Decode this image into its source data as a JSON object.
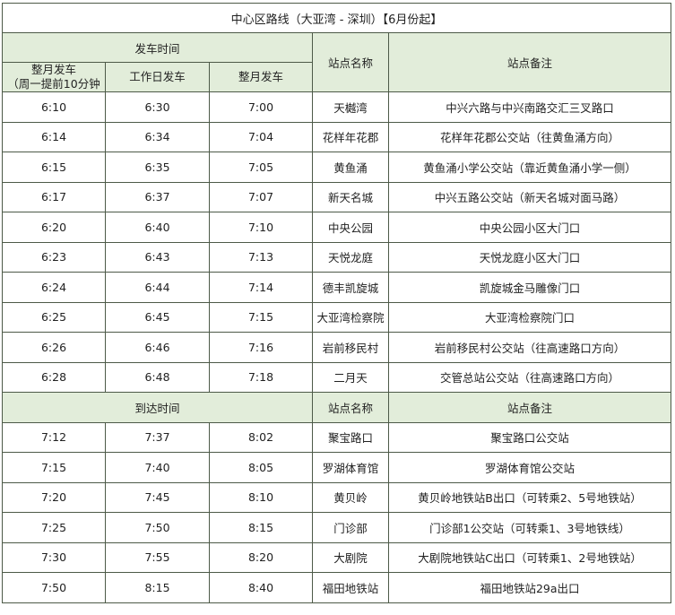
{
  "title": "中心区路线（大亚湾 - 深圳）【6月份起】",
  "departure_header": {
    "group_label": "发车时间",
    "col1": "整月发车",
    "col1_note": "（周一提前10分钟",
    "col2": "工作日发车",
    "col3": "整月发车",
    "station": "站点名称",
    "remark": "站点备注"
  },
  "departure_rows": [
    {
      "t1": "6:10",
      "t2": "6:30",
      "t3": "7:00",
      "station": "天樾湾",
      "remark": "中兴六路与中兴南路交汇三叉路口"
    },
    {
      "t1": "6:14",
      "t2": "6:34",
      "t3": "7:04",
      "station": "花样年花郡",
      "remark": "花样年花郡公交站（往黄鱼涌方向）"
    },
    {
      "t1": "6:15",
      "t2": "6:35",
      "t3": "7:05",
      "station": "黄鱼涌",
      "remark": "黄鱼涌小学公交站（靠近黄鱼涌小学一侧）"
    },
    {
      "t1": "6:17",
      "t2": "6:37",
      "t3": "7:07",
      "station": "新天名城",
      "remark": "中兴五路公交站（新天名城对面马路）"
    },
    {
      "t1": "6:20",
      "t2": "6:40",
      "t3": "7:10",
      "station": "中央公园",
      "remark": "中央公园小区大门口"
    },
    {
      "t1": "6:23",
      "t2": "6:43",
      "t3": "7:13",
      "station": "天悦龙庭",
      "remark": "天悦龙庭小区大门口"
    },
    {
      "t1": "6:24",
      "t2": "6:44",
      "t3": "7:14",
      "station": "德丰凯旋城",
      "remark": "凯旋城金马雕像门口"
    },
    {
      "t1": "6:25",
      "t2": "6:45",
      "t3": "7:15",
      "station": "大亚湾检察院",
      "remark": "大亚湾检察院门口"
    },
    {
      "t1": "6:26",
      "t2": "6:46",
      "t3": "7:16",
      "station": "岩前移民村",
      "remark": "岩前移民村公交站（往高速路口方向）"
    },
    {
      "t1": "6:28",
      "t2": "6:48",
      "t3": "7:18",
      "station": "二月天",
      "remark": "交管总站公交站（往高速路口方向）"
    }
  ],
  "arrival_header": {
    "group_label": "到达时间",
    "station": "站点名称",
    "remark": "站点备注"
  },
  "arrival_rows": [
    {
      "t1": "7:12",
      "t2": "7:37",
      "t3": "8:02",
      "station": "聚宝路口",
      "remark": "聚宝路口公交站"
    },
    {
      "t1": "7:15",
      "t2": "7:40",
      "t3": "8:05",
      "station": "罗湖体育馆",
      "remark": "罗湖体育馆公交站"
    },
    {
      "t1": "7:20",
      "t2": "7:45",
      "t3": "8:10",
      "station": "黄贝岭",
      "remark": "黄贝岭地铁站B出口（可转乘2、5号地铁站）"
    },
    {
      "t1": "7:25",
      "t2": "7:50",
      "t3": "8:15",
      "station": "门诊部",
      "remark": "门诊部1公交站（可转乘1、3号地铁线）"
    },
    {
      "t1": "7:30",
      "t2": "7:55",
      "t3": "8:20",
      "station": "大剧院",
      "remark": "大剧院地铁站C出口（可转乘1、2号地铁站）"
    },
    {
      "t1": "7:50",
      "t2": "8:15",
      "t3": "8:40",
      "station": "福田地铁站",
      "remark": "福田地铁站29a出口"
    }
  ],
  "colors": {
    "header_bg": "#e2edda",
    "border": "#4d5a48"
  }
}
